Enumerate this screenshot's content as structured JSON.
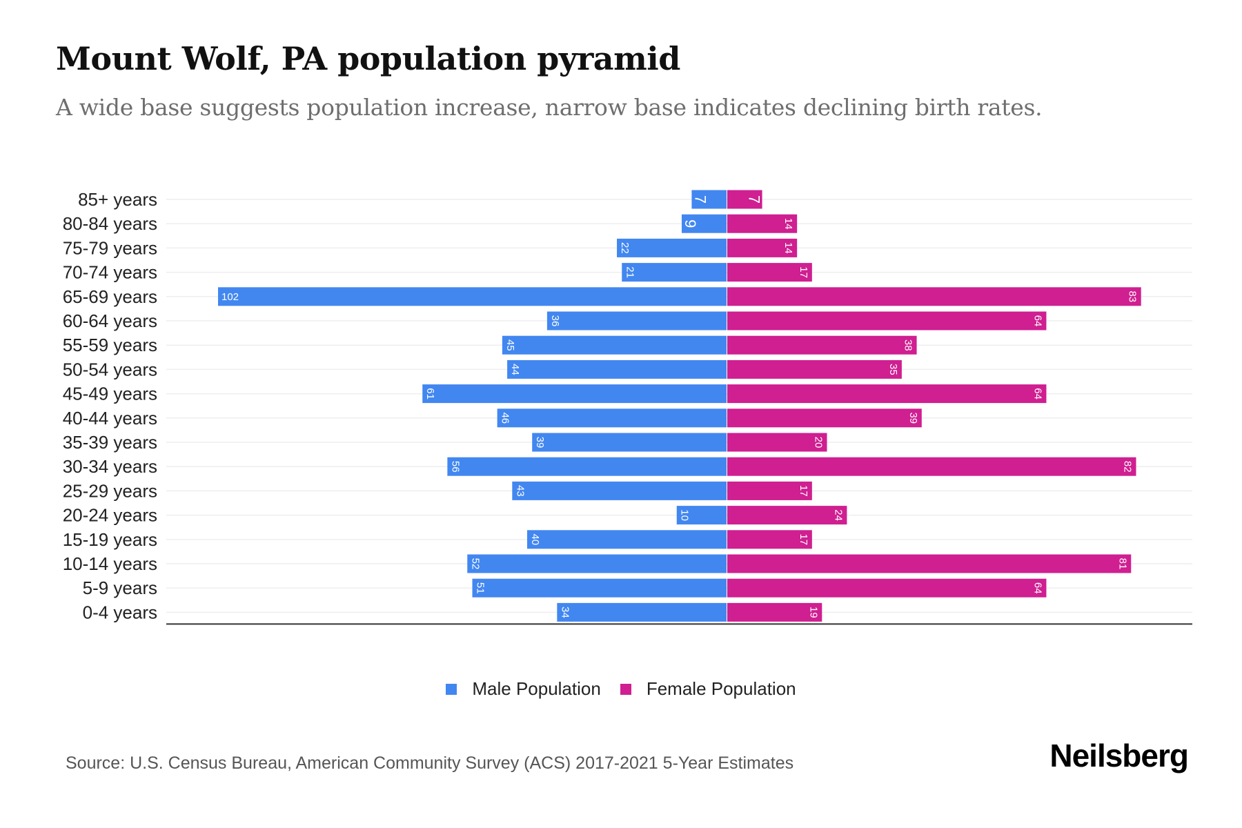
{
  "header": {
    "title": "Mount Wolf, PA population pyramid",
    "subtitle": "A wide base suggests population increase, narrow base indicates declining birth rates."
  },
  "legend": {
    "male_label": "Male Population",
    "female_label": "Female Population"
  },
  "footer": {
    "source": "Source: U.S. Census Bureau, American Community Survey (ACS) 2017-2021 5-Year Estimates",
    "brand": "Neilsberg"
  },
  "colors": {
    "male": "#4287f0",
    "female": "#cf1f91",
    "gridline": "#eeeeee",
    "baseline": "#333333"
  },
  "chart_data": {
    "type": "bar",
    "orientation": "horizontal-diverging",
    "title": "Mount Wolf, PA population pyramid",
    "subtitle": "A wide base suggests population increase, narrow base indicates declining birth rates.",
    "xlabel": "",
    "ylabel": "",
    "grid": true,
    "legend_position": "bottom-center",
    "xlim": [
      -102,
      102
    ],
    "categories": [
      "85+ years",
      "80-84 years",
      "75-79 years",
      "70-74 years",
      "65-69 years",
      "60-64 years",
      "55-59 years",
      "50-54 years",
      "45-49 years",
      "40-44 years",
      "35-39 years",
      "30-34 years",
      "25-29 years",
      "20-24 years",
      "15-19 years",
      "10-14 years",
      "5-9 years",
      "0-4 years"
    ],
    "series": [
      {
        "name": "Male Population",
        "side": "left",
        "values": [
          7,
          9,
          22,
          21,
          102,
          36,
          45,
          44,
          61,
          46,
          39,
          56,
          43,
          10,
          40,
          52,
          51,
          34
        ]
      },
      {
        "name": "Female Population",
        "side": "right",
        "values": [
          7,
          14,
          14,
          17,
          83,
          64,
          38,
          35,
          64,
          39,
          20,
          82,
          17,
          24,
          17,
          81,
          64,
          19
        ]
      }
    ]
  }
}
